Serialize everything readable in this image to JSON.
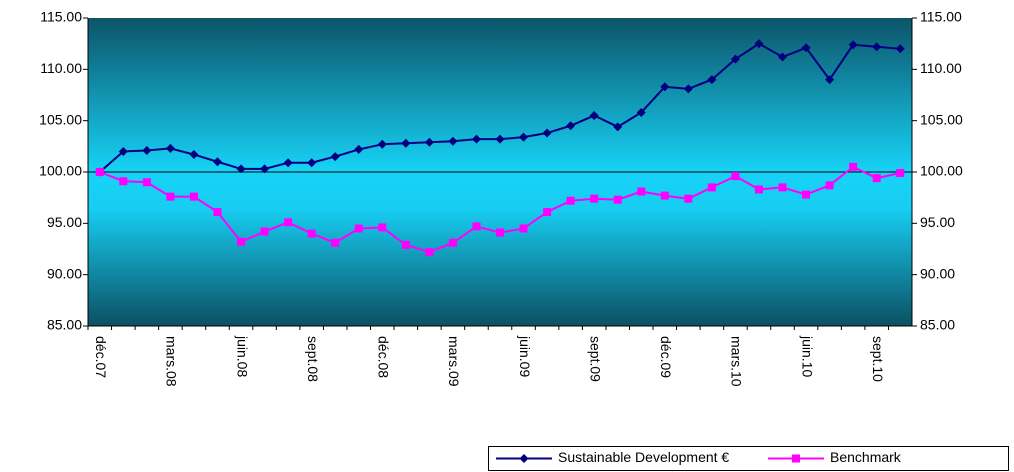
{
  "chart_data": {
    "type": "line",
    "categories": [
      "déc.07",
      null,
      null,
      "mars.08",
      null,
      null,
      "juin.08",
      null,
      null,
      "sept.08",
      null,
      null,
      "déc.08",
      null,
      null,
      "mars.09",
      null,
      null,
      "juin.09",
      null,
      null,
      "sept.09",
      null,
      null,
      "déc.09",
      null,
      null,
      "mars.10",
      null,
      null,
      "juin.10",
      null,
      null,
      "sept.10",
      null
    ],
    "series": [
      {
        "name": "Sustainable Development €",
        "color": "#000080",
        "marker": "diamond",
        "values": [
          100.0,
          102.0,
          102.1,
          102.3,
          101.7,
          101.0,
          100.3,
          100.3,
          100.9,
          100.9,
          101.5,
          102.2,
          102.7,
          102.8,
          102.9,
          103.0,
          103.2,
          103.2,
          103.4,
          103.8,
          104.5,
          105.5,
          104.4,
          105.8,
          108.3,
          108.1,
          109.0,
          111.0,
          112.5,
          111.2,
          112.1,
          109.0,
          112.4,
          112.2,
          112.0
        ]
      },
      {
        "name": "Benchmark",
        "color": "#ff00ff",
        "marker": "square",
        "values": [
          100.0,
          99.1,
          99.0,
          97.6,
          97.6,
          96.1,
          93.2,
          94.2,
          95.1,
          94.0,
          93.1,
          94.5,
          94.6,
          92.9,
          92.2,
          93.1,
          94.7,
          94.1,
          94.5,
          96.1,
          97.2,
          97.4,
          97.3,
          98.1,
          97.7,
          97.4,
          98.5,
          99.6,
          98.3,
          98.5,
          97.8,
          98.7,
          100.5,
          99.4,
          99.9
        ]
      }
    ],
    "ylim": [
      85,
      115
    ],
    "yticks": [
      {
        "value": 85,
        "label": "85.00"
      },
      {
        "value": 90,
        "label": "90.00"
      },
      {
        "value": 95,
        "label": "95.00"
      },
      {
        "value": 100,
        "label": "100.00"
      },
      {
        "value": 105,
        "label": "105.00"
      },
      {
        "value": 110,
        "label": "110.00"
      },
      {
        "value": 115,
        "label": "115.00"
      }
    ],
    "y2lim": [
      85,
      115
    ],
    "y2ticks": [
      {
        "value": 85,
        "label": "85.00"
      },
      {
        "value": 90,
        "label": "90.00"
      },
      {
        "value": 95,
        "label": "95.00"
      },
      {
        "value": 100,
        "label": "100.00"
      },
      {
        "value": 105,
        "label": "105.00"
      },
      {
        "value": 110,
        "label": "110.00"
      },
      {
        "value": 115,
        "label": "115.00"
      }
    ],
    "baseline": 100,
    "legend": "bottom-right"
  }
}
